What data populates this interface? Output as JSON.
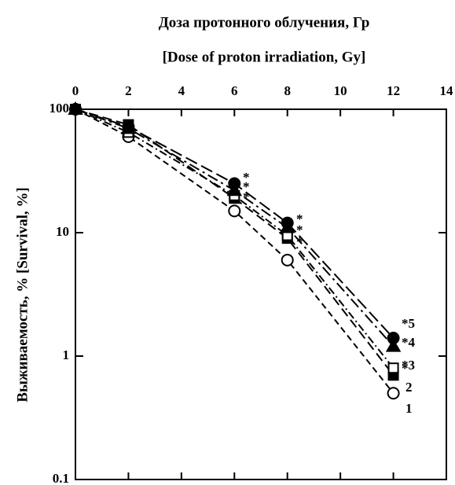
{
  "chart_data": {
    "type": "line",
    "title": "Доза протонного облучения, Гр",
    "subtitle": "[Dose of proton irradiation, Gy]",
    "y_label": "Выживаемость, % [Survival, %]",
    "x": [
      0,
      2,
      6,
      8,
      12
    ],
    "series": [
      {
        "name": "1",
        "color": "#000000",
        "marker": "open-circle",
        "values": [
          100,
          60,
          15,
          6,
          0.5
        ]
      },
      {
        "name": "2",
        "color": "#000000",
        "marker": "filled-square",
        "values": [
          100,
          75,
          19,
          9,
          0.7
        ]
      },
      {
        "name": "*3",
        "color": "#000000",
        "marker": "open-square",
        "values": [
          100,
          65,
          20,
          9.5,
          0.8
        ]
      },
      {
        "name": "*4",
        "color": "#000000",
        "marker": "filled-triangle",
        "values": [
          100,
          70,
          22,
          11,
          1.2
        ]
      },
      {
        "name": "*5",
        "color": "#000000",
        "marker": "filled-circle",
        "values": [
          100,
          72,
          25,
          12,
          1.4
        ]
      }
    ],
    "annotations": [
      "*",
      "*",
      "*",
      "*",
      "*",
      "*",
      "*"
    ],
    "xlim": [
      0,
      14
    ],
    "xticks": [
      0,
      2,
      4,
      6,
      8,
      10,
      12,
      14
    ],
    "ylim": [
      0.1,
      100
    ],
    "yticks": [
      0.1,
      1,
      10,
      100
    ],
    "log_y": true
  }
}
